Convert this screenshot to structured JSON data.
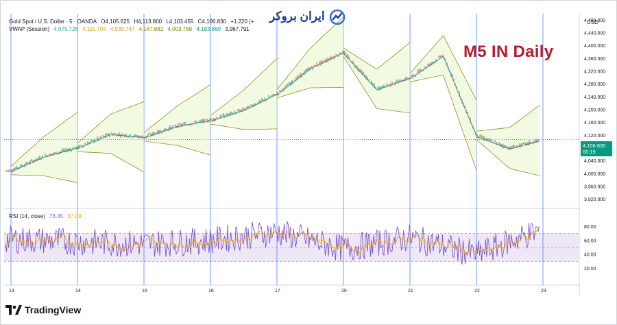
{
  "legend": {
    "symbol": "Gold Spot / U.S. Dollar · 5 · OANDA",
    "o": "O4,105.625",
    "h": "H4,113.800",
    "l": "L4,103.455",
    "c": "C4,106.830",
    "chg": "+1.220 (+",
    "vwap_label": "VWAP (Session)",
    "vwap_values": [
      "4,075.726",
      "4,111.704",
      "4,039.747",
      "4,147.682",
      "4,003.769",
      "4,183.660",
      "3,967.791"
    ],
    "rsi_label": "RSI (14, close)",
    "rsi_value": "76.45",
    "rsi_ma": "67.09"
  },
  "watermark": "M5 IN Daily",
  "brand": "ایران بروکر",
  "currency": "USD",
  "price_tag": {
    "price": "4,106.830",
    "countdown": "00:19"
  },
  "footer": {
    "logo_icon": "tradingview-logo-icon",
    "name": "TradingView"
  },
  "colors": {
    "up": "#26a69a",
    "down": "#ef5350",
    "candle": "#131722",
    "vwap": "#22ab94",
    "band": "#808000",
    "band_fill": "#e8f5c8",
    "rsi": "#7e57c2",
    "rsi_ma": "#f7a600",
    "rsi_band": "#ede7f6",
    "session_line": "#2962ff",
    "price_tag": "#089981",
    "watermark": "#b71c2c"
  },
  "chart_data": {
    "type": "line",
    "title": "Gold Spot / U.S. Dollar · 5 · OANDA",
    "price_axis": {
      "ylim": [
        3900,
        4500
      ],
      "ticks": [
        "4,480.000",
        "4,440.000",
        "4,400.000",
        "4,360.000",
        "4,320.000",
        "4,280.000",
        "4,240.000",
        "4,200.000",
        "4,160.000",
        "4,120.000",
        "4,080.000",
        "4,040.000",
        "4,000.000",
        "3,960.000",
        "3,920.000"
      ]
    },
    "rsi_axis": {
      "ylim": [
        0,
        100
      ],
      "ticks": [
        "80.00",
        "60.00",
        "40.00",
        "20.00"
      ],
      "overbought": 70,
      "oversold": 30
    },
    "x_ticks": [
      "13",
      "14",
      "15",
      "16",
      "17",
      "20",
      "21",
      "22",
      "23"
    ],
    "series": [
      {
        "name": "Gold Spot / U.S. Dollar",
        "x": [
          0,
          0.5,
          1,
          1.5,
          2,
          2.5,
          3,
          3.5,
          4,
          4.5,
          5,
          5.5,
          6,
          6.5,
          7,
          7.5,
          8
        ],
        "values": [
          4010,
          4055,
          4082,
          4125,
          4115,
          4150,
          4168,
          4200,
          4250,
          4330,
          4380,
          4265,
          4300,
          4370,
          4120,
          4080,
          4107
        ]
      }
    ],
    "rsi_series": {
      "x": [
        0,
        1,
        2,
        3,
        4,
        5,
        6,
        7,
        8
      ],
      "values": [
        62,
        58,
        55,
        60,
        72,
        48,
        64,
        40,
        76.45
      ]
    }
  }
}
